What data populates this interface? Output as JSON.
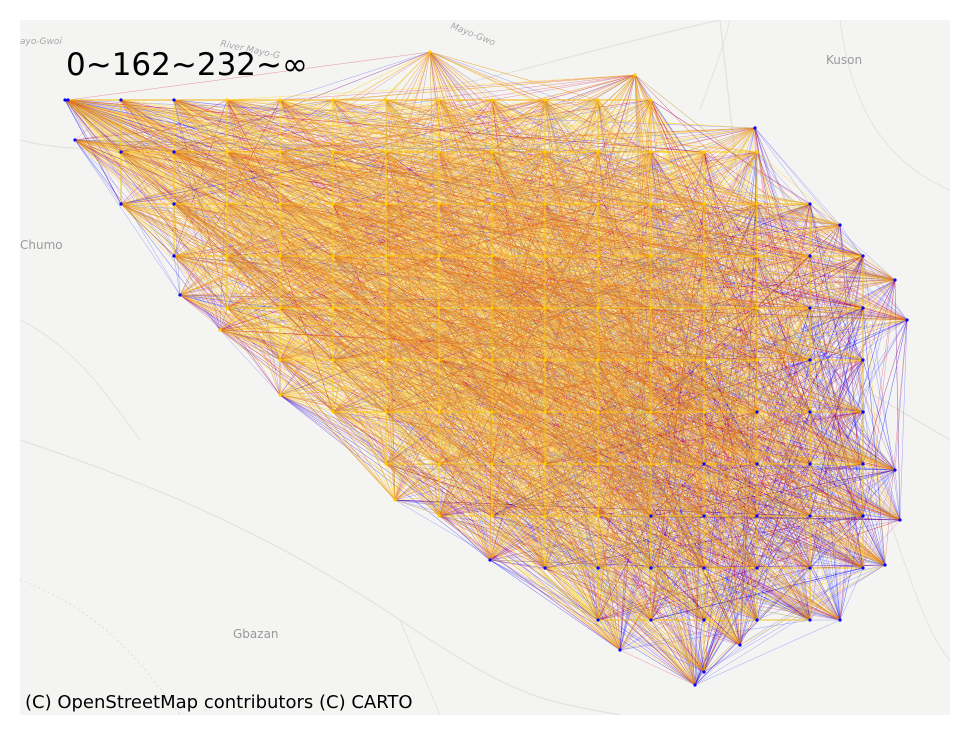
{
  "map": {
    "legend_text": "0~162~232~∞",
    "attribution": "(C) OpenStreetMap contributors (C) CARTO",
    "places": [
      {
        "name": "Kuson",
        "kind": "place"
      },
      {
        "name": "Chumo",
        "kind": "place"
      },
      {
        "name": "Gbazan",
        "kind": "place"
      },
      {
        "name": "River Mayo-G",
        "kind": "river"
      },
      {
        "name": "Mayo-Gwo",
        "kind": "river"
      },
      {
        "name": "ayo-Gwoi",
        "kind": "river"
      }
    ],
    "colors": {
      "background": "#f4f4f3",
      "road": "#e2e2e0",
      "low_class": "#0000ff",
      "mid_class": "#cc0033",
      "high_class": "#ffd000"
    },
    "flow_classes": [
      {
        "range": "0~162",
        "color": "#0000ff"
      },
      {
        "range": "162~232",
        "color": "#cc0033"
      },
      {
        "range": "232~∞",
        "color": "#ffd000"
      }
    ]
  }
}
